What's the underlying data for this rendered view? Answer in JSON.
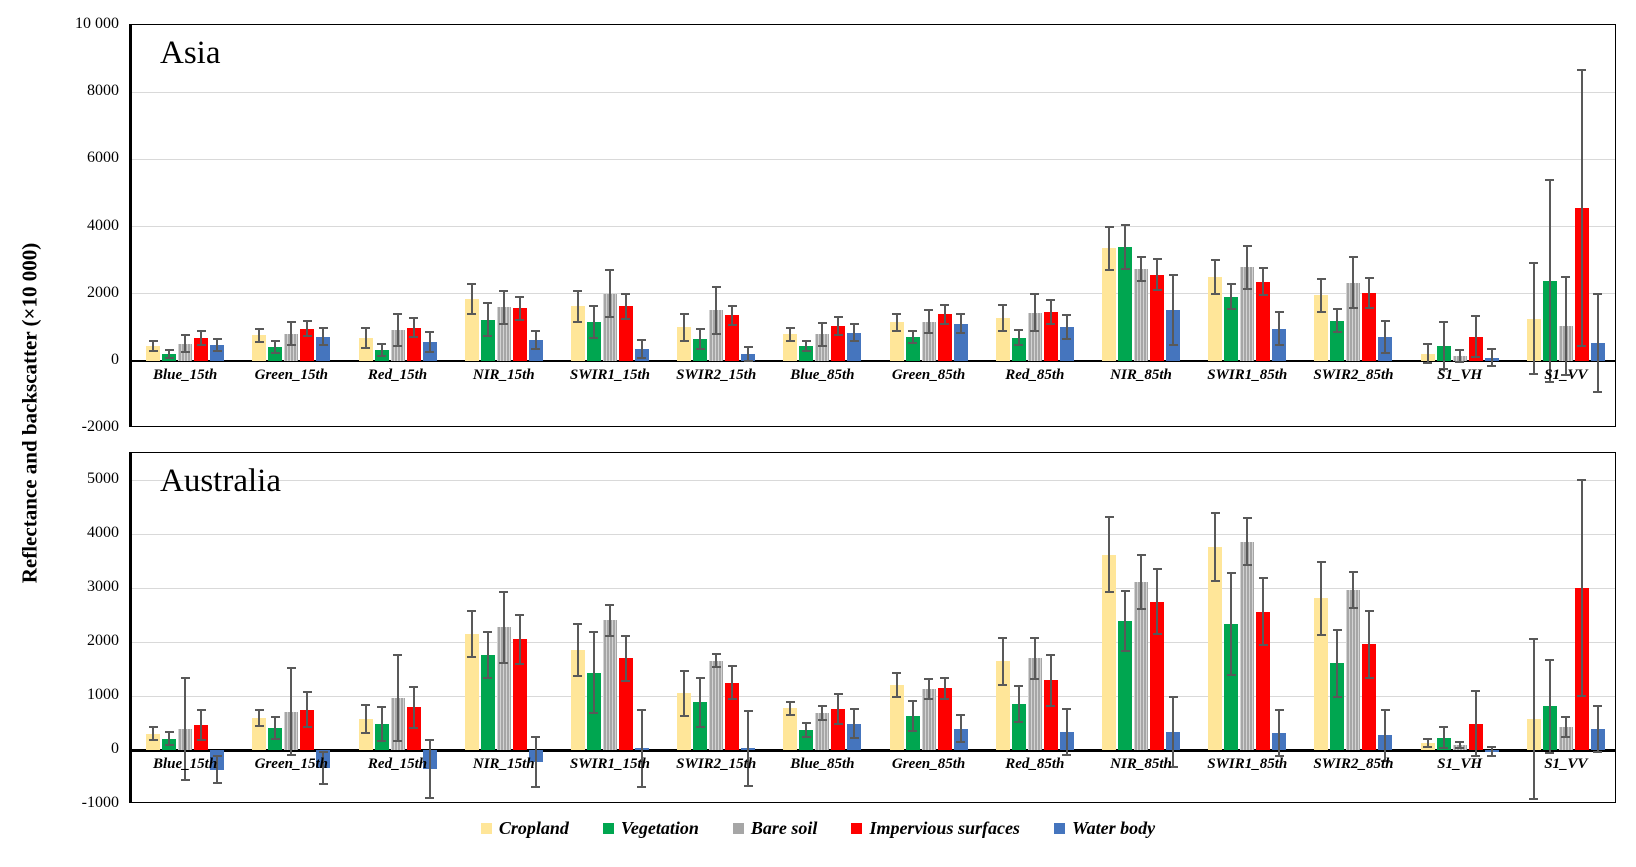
{
  "figure": {
    "y_axis_label": "Reflectance and backscatter (×10 000)",
    "legend": [
      {
        "label": "Cropland",
        "color": "#FFE699"
      },
      {
        "label": "Vegetation",
        "color": "#00A650"
      },
      {
        "label": "Bare soil",
        "color": "#A6A6A6"
      },
      {
        "label": "Impervious surfaces",
        "color": "#FE0000"
      },
      {
        "label": "Water body",
        "color": "#4575BE"
      }
    ]
  },
  "chart_data": [
    {
      "type": "bar",
      "title": "Asia",
      "ylim": [
        -2000,
        10000
      ],
      "yticks": [
        {
          "value": 10000,
          "label": "10 000"
        },
        {
          "value": 8000,
          "label": "8000"
        },
        {
          "value": 6000,
          "label": "6000"
        },
        {
          "value": 4000,
          "label": "4000"
        },
        {
          "value": 2000,
          "label": "2000"
        },
        {
          "value": 0,
          "label": "0"
        },
        {
          "value": -2000,
          "label": "-2000"
        }
      ],
      "grid": true,
      "legend_position": "bottom",
      "categories": [
        "Blue_15th",
        "Green_15th",
        "Red_15th",
        "NIR_15th",
        "SWIR1_15th",
        "SWIR2_15th",
        "Blue_85th",
        "Green_85th",
        "Red_85th",
        "NIR_85th",
        "SWIR1_85th",
        "SWIR2_85th",
        "S1_VH",
        "S1_VV"
      ],
      "series": [
        {
          "name": "Cropland",
          "color": "#FFE699",
          "hatch": false,
          "values": [
            440,
            760,
            690,
            1850,
            1620,
            1000,
            790,
            1150,
            1280,
            3350,
            2500,
            1950,
            210,
            1250
          ],
          "errors": [
            150,
            200,
            300,
            450,
            450,
            400,
            200,
            250,
            380,
            650,
            500,
            500,
            280,
            1650
          ]
        },
        {
          "name": "Vegetation",
          "color": "#00A650",
          "hatch": false,
          "values": [
            210,
            410,
            320,
            1230,
            1150,
            650,
            440,
            720,
            690,
            3380,
            1910,
            1200,
            450,
            2380
          ],
          "errors": [
            120,
            180,
            180,
            480,
            480,
            300,
            150,
            180,
            220,
            650,
            380,
            350,
            700,
            3000
          ]
        },
        {
          "name": "Bare soil",
          "color": "#A6A6A6",
          "hatch": true,
          "values": [
            510,
            810,
            920,
            1590,
            2000,
            1500,
            790,
            1170,
            1430,
            2740,
            2780,
            2330,
            150,
            1040
          ],
          "errors": [
            250,
            350,
            480,
            500,
            700,
            700,
            350,
            350,
            550,
            350,
            650,
            750,
            180,
            1450
          ]
        },
        {
          "name": "Impervious surfaces",
          "color": "#FE0000",
          "hatch": false,
          "values": [
            680,
            960,
            990,
            1560,
            1620,
            1350,
            1040,
            1380,
            1460,
            2570,
            2360,
            2030,
            720,
            4550
          ],
          "errors": [
            200,
            220,
            280,
            350,
            380,
            280,
            280,
            280,
            350,
            450,
            400,
            450,
            620,
            4100
          ]
        },
        {
          "name": "Water body",
          "color": "#4575BE",
          "hatch": false,
          "values": [
            470,
            720,
            570,
            620,
            350,
            200,
            840,
            1100,
            1010,
            1520,
            960,
            700,
            90,
            540
          ],
          "errors": [
            180,
            250,
            300,
            270,
            280,
            200,
            250,
            280,
            350,
            1050,
            500,
            480,
            250,
            1460
          ]
        }
      ]
    },
    {
      "type": "bar",
      "title": "Australia",
      "ylim": [
        -1000,
        5500
      ],
      "yticks": [
        {
          "value": 5000,
          "label": "5000"
        },
        {
          "value": 4000,
          "label": "4000"
        },
        {
          "value": 3000,
          "label": "3000"
        },
        {
          "value": 2000,
          "label": "2000"
        },
        {
          "value": 1000,
          "label": "1000"
        },
        {
          "value": 0,
          "label": "0"
        },
        {
          "value": -1000,
          "label": "-1000"
        }
      ],
      "grid": true,
      "legend_position": "bottom",
      "categories": [
        "Blue_15th",
        "Green_15th",
        "Red_15th",
        "NIR_15th",
        "SWIR1_15th",
        "SWIR2_15th",
        "Blue_85th",
        "Green_85th",
        "Red_85th",
        "NIR_85th",
        "SWIR1_85th",
        "SWIR2_85th",
        "S1_VH",
        "S1_VV"
      ],
      "series": [
        {
          "name": "Cropland",
          "color": "#FFE699",
          "hatch": false,
          "values": [
            300,
            590,
            570,
            2150,
            1850,
            1050,
            770,
            1200,
            1640,
            3620,
            3760,
            2810,
            130,
            570
          ],
          "errors": [
            120,
            150,
            260,
            420,
            480,
            420,
            120,
            220,
            430,
            700,
            630,
            680,
            80,
            1480
          ]
        },
        {
          "name": "Vegetation",
          "color": "#00A650",
          "hatch": false,
          "values": [
            210,
            410,
            480,
            1760,
            1430,
            880,
            370,
            630,
            850,
            2390,
            2330,
            1610,
            230,
            810
          ],
          "errors": [
            120,
            200,
            320,
            420,
            750,
            450,
            130,
            280,
            330,
            550,
            950,
            620,
            200,
            860
          ]
        },
        {
          "name": "Bare soil",
          "color": "#A6A6A6",
          "hatch": true,
          "values": [
            390,
            710,
            960,
            2270,
            2400,
            1650,
            680,
            1130,
            1700,
            3120,
            3860,
            2960,
            90,
            430
          ],
          "errors": [
            950,
            800,
            800,
            650,
            280,
            120,
            130,
            180,
            380,
            500,
            430,
            330,
            60,
            180
          ]
        },
        {
          "name": "Impervious surfaces",
          "color": "#FE0000",
          "hatch": false,
          "values": [
            470,
            750,
            790,
            2050,
            1700,
            1250,
            760,
            1140,
            1290,
            2750,
            2560,
            1960,
            490,
            3000
          ],
          "errors": [
            280,
            330,
            380,
            450,
            420,
            300,
            270,
            200,
            470,
            600,
            620,
            620,
            600,
            2000
          ]
        },
        {
          "name": "Water body",
          "color": "#4575BE",
          "hatch": false,
          "values": [
            -370,
            -330,
            -350,
            -220,
            30,
            30,
            490,
            390,
            330,
            330,
            320,
            270,
            -30,
            390
          ],
          "errors": [
            250,
            300,
            540,
            470,
            720,
            700,
            270,
            250,
            430,
            650,
            430,
            480,
            80,
            420
          ]
        }
      ]
    }
  ]
}
